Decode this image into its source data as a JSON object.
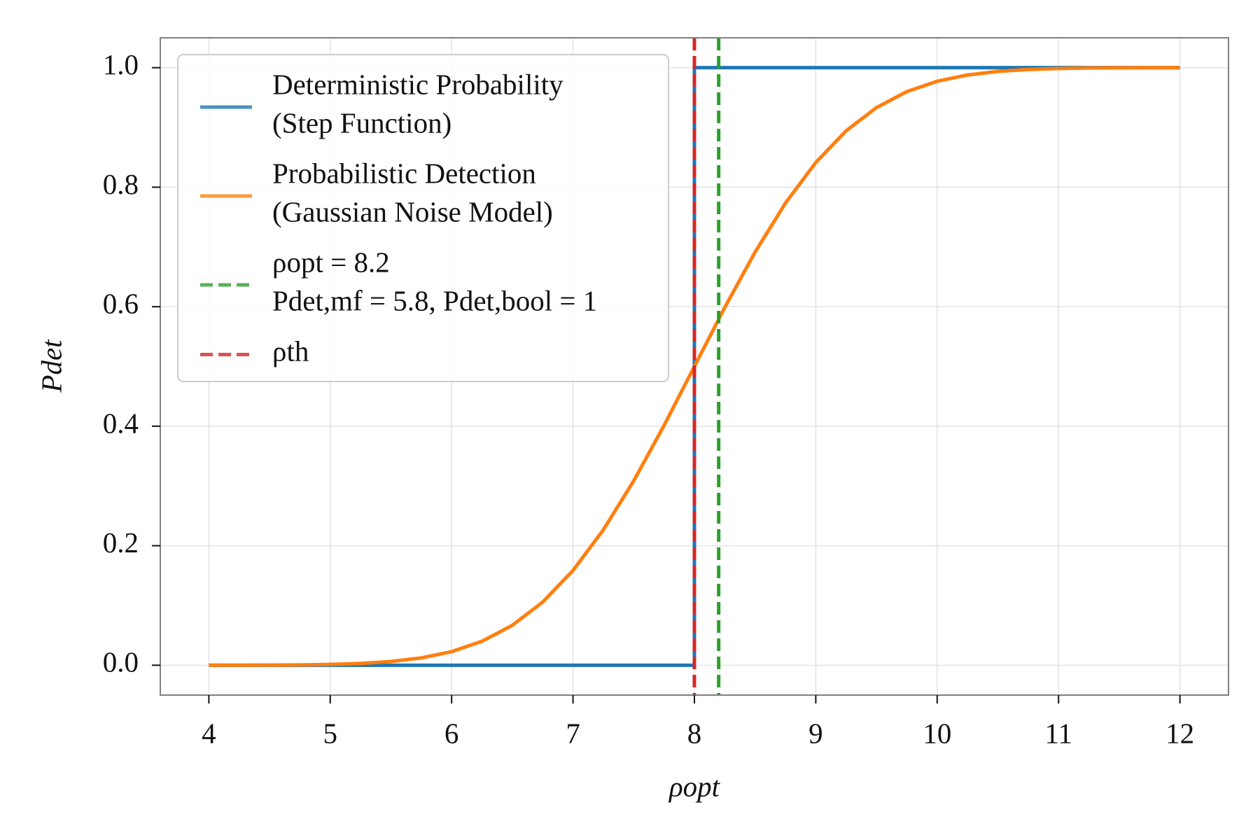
{
  "chart_data": {
    "type": "line",
    "xlabel": "ρopt",
    "ylabel": "Pdet",
    "xlim": [
      3.6,
      12.4
    ],
    "ylim": [
      -0.05,
      1.05
    ],
    "xticks": [
      4,
      5,
      6,
      7,
      8,
      9,
      10,
      11,
      12
    ],
    "yticks": [
      {
        "value": 0,
        "label": "0.0"
      },
      0.2,
      0.4,
      0.6,
      0.8,
      {
        "value": 1,
        "label": "1.0"
      }
    ],
    "grid": true,
    "legend": "upper left",
    "series": [
      {
        "name": "Deterministic Probability\n(Step Function)",
        "color": "#1f77b4",
        "x": [
          4,
          8,
          8,
          12
        ],
        "values": [
          0,
          0,
          1,
          1
        ]
      },
      {
        "name": "Probabilistic Detection\n(Gaussian Noise Model)",
        "color": "#ff7f0e",
        "x": [
          4,
          4.25,
          4.5,
          4.75,
          5,
          5.25,
          5.5,
          5.75,
          6,
          6.25,
          6.5,
          6.75,
          7,
          7.25,
          7.5,
          7.75,
          8,
          8.25,
          8.5,
          8.75,
          9,
          9.25,
          9.5,
          9.75,
          10,
          10.25,
          10.5,
          10.75,
          11,
          11.25,
          11.5,
          11.75,
          12
        ],
        "values": [
          3e-05,
          9e-05,
          0.00023,
          0.00058,
          0.00135,
          0.00298,
          0.00621,
          0.01222,
          0.02275,
          0.04006,
          0.06681,
          0.10565,
          0.15866,
          0.22663,
          0.30854,
          0.40129,
          0.5,
          0.59871,
          0.69146,
          0.77337,
          0.84134,
          0.89435,
          0.93319,
          0.95994,
          0.97725,
          0.98778,
          0.99379,
          0.99702,
          0.99865,
          0.99942,
          0.99977,
          0.99991,
          0.99997
        ]
      },
      {
        "name": "ρopt = 8.2\nPdet,mf = 5.8, Pdet,bool = 1",
        "color": "#2ca02c",
        "style": "dashed",
        "vline": 8.2
      },
      {
        "name": "ρth",
        "color": "#d62728",
        "style": "dashed",
        "vline": 8
      }
    ]
  }
}
